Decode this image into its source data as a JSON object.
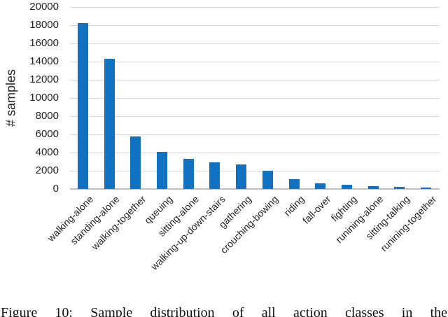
{
  "figure": {
    "caption": "Figure 10: Sample distribution of all action classes in the"
  },
  "chart_data": {
    "type": "bar",
    "title": "",
    "xlabel": "",
    "ylabel": "# samples",
    "categories": [
      "walking-alone",
      "standing-alone",
      "walking-together",
      "queuing",
      "sitting-alone",
      "walking-up-down-stairs",
      "gathering",
      "crouching-bowing",
      "riding",
      "fall-over",
      "fighting",
      "runining-alone",
      "sitting-talking",
      "runining-together"
    ],
    "values": [
      18200,
      14300,
      5800,
      4100,
      3300,
      2900,
      2700,
      2000,
      1100,
      650,
      450,
      300,
      240,
      150
    ],
    "ylim": [
      0,
      20000
    ],
    "ytick_step": 2000,
    "grid": "horizontal",
    "legend": "none",
    "colors": {
      "bar": "#1272c2",
      "gridline": "#d9d9d9",
      "axis_line": "#bfbfbf",
      "tick_text": "#262626"
    }
  }
}
